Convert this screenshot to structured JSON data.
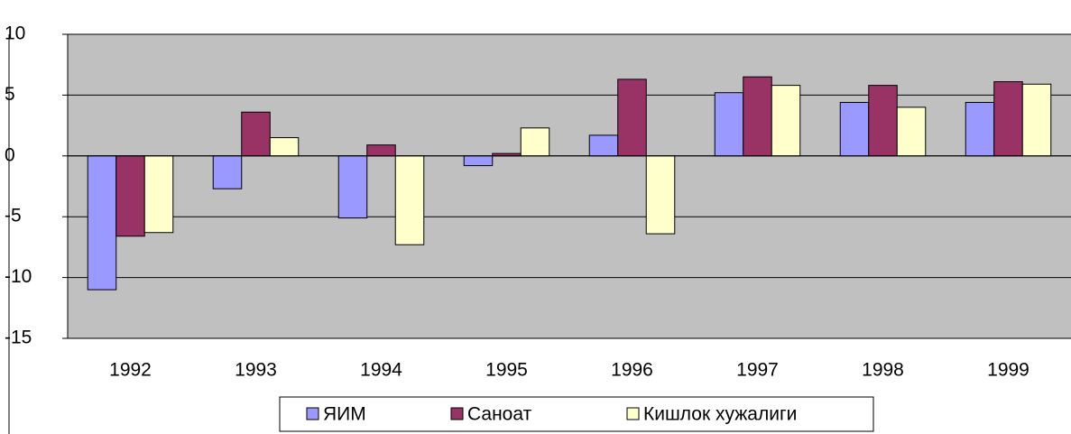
{
  "chart_data": {
    "type": "bar",
    "categories": [
      "1992",
      "1993",
      "1994",
      "1995",
      "1996",
      "1997",
      "1998",
      "1999"
    ],
    "series": [
      {
        "name": "ЯИМ",
        "color": "#9999ff",
        "values": [
          -11.0,
          -2.7,
          -5.1,
          -0.8,
          1.7,
          5.2,
          4.4,
          4.4
        ]
      },
      {
        "name": "Саноат",
        "color": "#993366",
        "values": [
          -6.6,
          3.6,
          0.9,
          0.2,
          6.3,
          6.5,
          5.8,
          6.1
        ]
      },
      {
        "name": "Кишлок хужалиги",
        "color": "#ffffcc",
        "values": [
          -6.3,
          1.5,
          -7.3,
          2.3,
          -6.4,
          5.8,
          4.0,
          5.9
        ]
      }
    ],
    "ylim": [
      -15,
      10
    ],
    "yticks": [
      -15,
      -10,
      -5,
      0,
      5,
      10
    ],
    "grid": true,
    "legend": "bottom"
  }
}
